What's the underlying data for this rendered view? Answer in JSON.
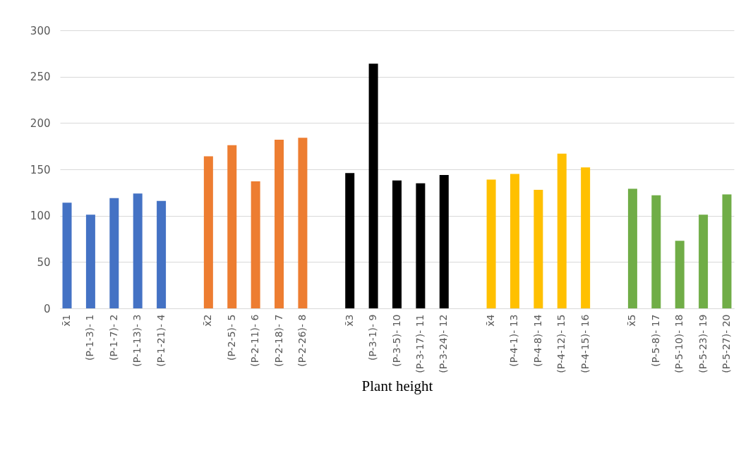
{
  "chart_data": {
    "type": "bar",
    "xlabel": "Plant height",
    "categories": [
      "x̄1",
      "(P-1-3)- 1",
      "(P-1-7)- 2",
      "(P-1-13)- 3",
      "(P-1-21)- 4",
      null,
      "x̄2",
      "(P-2-5)- 5",
      "(P-2-11)- 6",
      "(P-2-18)- 7",
      "(P-2-26)- 8",
      null,
      "x̄3",
      "(P-3-1)- 9",
      "(P-3-5)- 10",
      "(P-3-17)- 11",
      "(P-3-24)- 12",
      null,
      "x̄4",
      "(P-4-1)- 13",
      "(P-4-8)- 14",
      "(P-4-12)- 15",
      "(P-4-15)- 16",
      null,
      "x̄5",
      "(P-5-8)- 17",
      "(P-5-10)- 18",
      "(P-5-23)- 19",
      "(P-5-27)- 20"
    ],
    "values": [
      114,
      101,
      119,
      124,
      116,
      null,
      164,
      176,
      137,
      182,
      184,
      null,
      146,
      264,
      138,
      135,
      144,
      null,
      139,
      145,
      128,
      167,
      152,
      null,
      129,
      122,
      73,
      101,
      123
    ],
    "colors": [
      "#4472c4",
      "#4472c4",
      "#4472c4",
      "#4472c4",
      "#4472c4",
      null,
      "#ed7d31",
      "#ed7d31",
      "#ed7d31",
      "#ed7d31",
      "#ed7d31",
      null,
      "#000000",
      "#000000",
      "#000000",
      "#000000",
      "#000000",
      null,
      "#ffc000",
      "#ffc000",
      "#ffc000",
      "#ffc000",
      "#ffc000",
      null,
      "#70ad47",
      "#70ad47",
      "#70ad47",
      "#70ad47",
      "#70ad47"
    ],
    "ylim": [
      0,
      300
    ],
    "yticks": [
      0,
      50,
      100,
      150,
      200,
      250,
      300
    ],
    "grid": "y"
  }
}
